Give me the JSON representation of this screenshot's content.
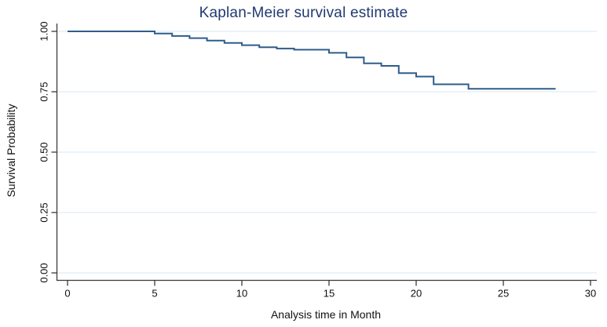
{
  "chart_data": {
    "type": "line",
    "subtype": "step",
    "title": "Kaplan-Meier survival estimate",
    "xlabel": "Analysis time in Month",
    "ylabel": "Survival Probability",
    "xlim": [
      0,
      30
    ],
    "ylim": [
      0.0,
      1.0
    ],
    "grid": "horizontal",
    "legend": "none",
    "x_ticks": [
      {
        "value": 0,
        "label": "0"
      },
      {
        "value": 5,
        "label": "5"
      },
      {
        "value": 10,
        "label": "10"
      },
      {
        "value": 15,
        "label": "15"
      },
      {
        "value": 20,
        "label": "20"
      },
      {
        "value": 25,
        "label": "25"
      },
      {
        "value": 30,
        "label": "30"
      }
    ],
    "y_ticks": [
      {
        "value": 0.0,
        "label": "0.00"
      },
      {
        "value": 0.25,
        "label": "0.25"
      },
      {
        "value": 0.5,
        "label": "0.50"
      },
      {
        "value": 0.75,
        "label": "0.75"
      },
      {
        "value": 1.0,
        "label": "1.00"
      }
    ],
    "series": [
      {
        "name": "survival-estimate",
        "step_times": [
          0,
          5,
          6,
          7,
          8,
          9,
          10,
          11,
          12,
          13,
          15,
          16,
          17,
          18,
          19,
          20,
          21,
          23
        ],
        "step_survival": [
          1.0,
          0.991,
          0.981,
          0.972,
          0.962,
          0.952,
          0.943,
          0.934,
          0.929,
          0.924,
          0.911,
          0.892,
          0.868,
          0.857,
          0.827,
          0.813,
          0.781,
          0.762
        ],
        "end_time": 28,
        "color": "#2f5d8a"
      }
    ],
    "colors": {
      "title": "#203a70",
      "axis_line": "#3a3a3a",
      "grid_line": "#e6eff7",
      "tick_text": "#101010",
      "background": "#ffffff"
    }
  }
}
